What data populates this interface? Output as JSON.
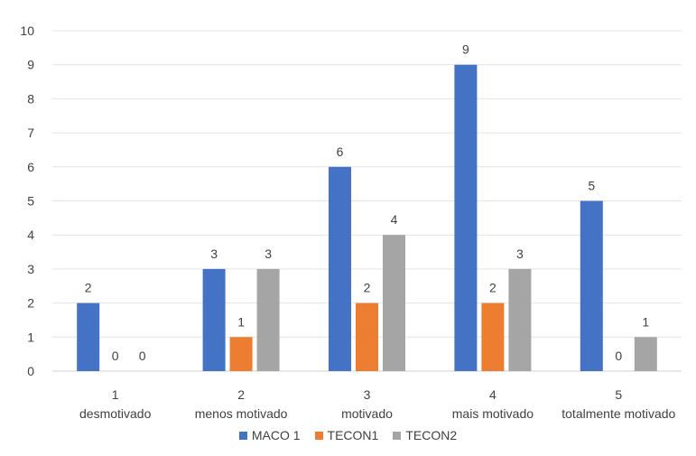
{
  "chart_data": {
    "type": "bar",
    "categories": [
      [
        "1",
        "desmotivado"
      ],
      [
        "2",
        "menos motivado"
      ],
      [
        "3",
        "motivado"
      ],
      [
        "4",
        "mais motivado"
      ],
      [
        "5",
        "totalmente motivado"
      ]
    ],
    "series": [
      {
        "name": "MACO 1",
        "values": [
          2,
          3,
          6,
          9,
          5
        ],
        "color": "#4472C4"
      },
      {
        "name": "TECON1",
        "values": [
          0,
          1,
          2,
          2,
          0
        ],
        "color": "#ED7D31"
      },
      {
        "name": "TECON2",
        "values": [
          0,
          3,
          4,
          3,
          1
        ],
        "color": "#A5A5A5"
      }
    ],
    "ylim": [
      0,
      10
    ],
    "yticks": [
      "0",
      "1",
      "2",
      "3",
      "4",
      "5",
      "6",
      "7",
      "8",
      "9",
      "10"
    ],
    "grid": true,
    "legend_position": "bottom",
    "data_labels": true
  }
}
